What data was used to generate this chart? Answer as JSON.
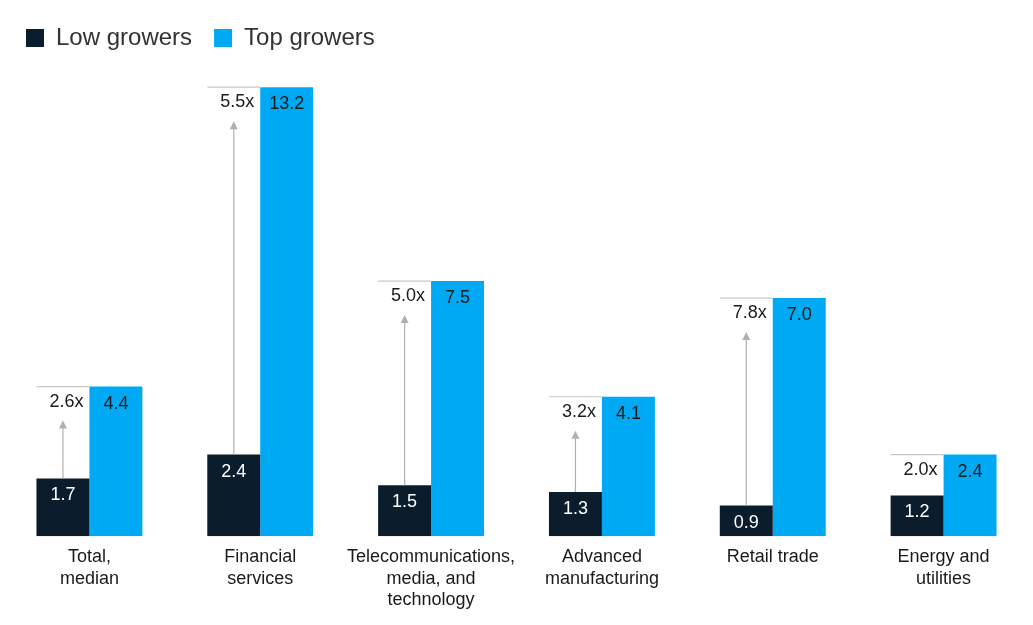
{
  "chart_data": {
    "type": "bar",
    "categories": [
      "Total, median",
      "Financial services",
      "Telecommunications, media, and technology",
      "Advanced manufacturing",
      "Retail trade",
      "Energy and utilities"
    ],
    "series": [
      {
        "name": "Low growers",
        "color": "#0b1c2c",
        "values": [
          1.7,
          2.4,
          1.5,
          1.3,
          0.9,
          1.2
        ],
        "value_labels": [
          "1.7",
          "2.4",
          "1.5",
          "1.3",
          "0.9",
          "1.2"
        ]
      },
      {
        "name": "Top growers",
        "color": "#00a9f4",
        "values": [
          4.4,
          13.2,
          7.5,
          4.1,
          7.0,
          2.4
        ],
        "value_labels": [
          "4.4",
          "13.2",
          "7.5",
          "4.1",
          "7.0",
          "2.4"
        ]
      }
    ],
    "legend": "top left",
    "grid": false,
    "annotations": [
      {
        "text": "2.6x",
        "x": "Total, median",
        "y": 4.4
      },
      {
        "text": "5.5x",
        "x": "Financial services",
        "y": 13.2
      },
      {
        "text": "5.0x",
        "x": "Telecommunications, media, and technology",
        "y": 7.5
      },
      {
        "text": "3.2x",
        "x": "Advanced manufacturing",
        "y": 4.1
      },
      {
        "text": "7.8x",
        "x": "Retail trade",
        "y": 7.0
      },
      {
        "text": "2.0x",
        "x": "Energy and utilities",
        "y": 2.4
      }
    ]
  }
}
